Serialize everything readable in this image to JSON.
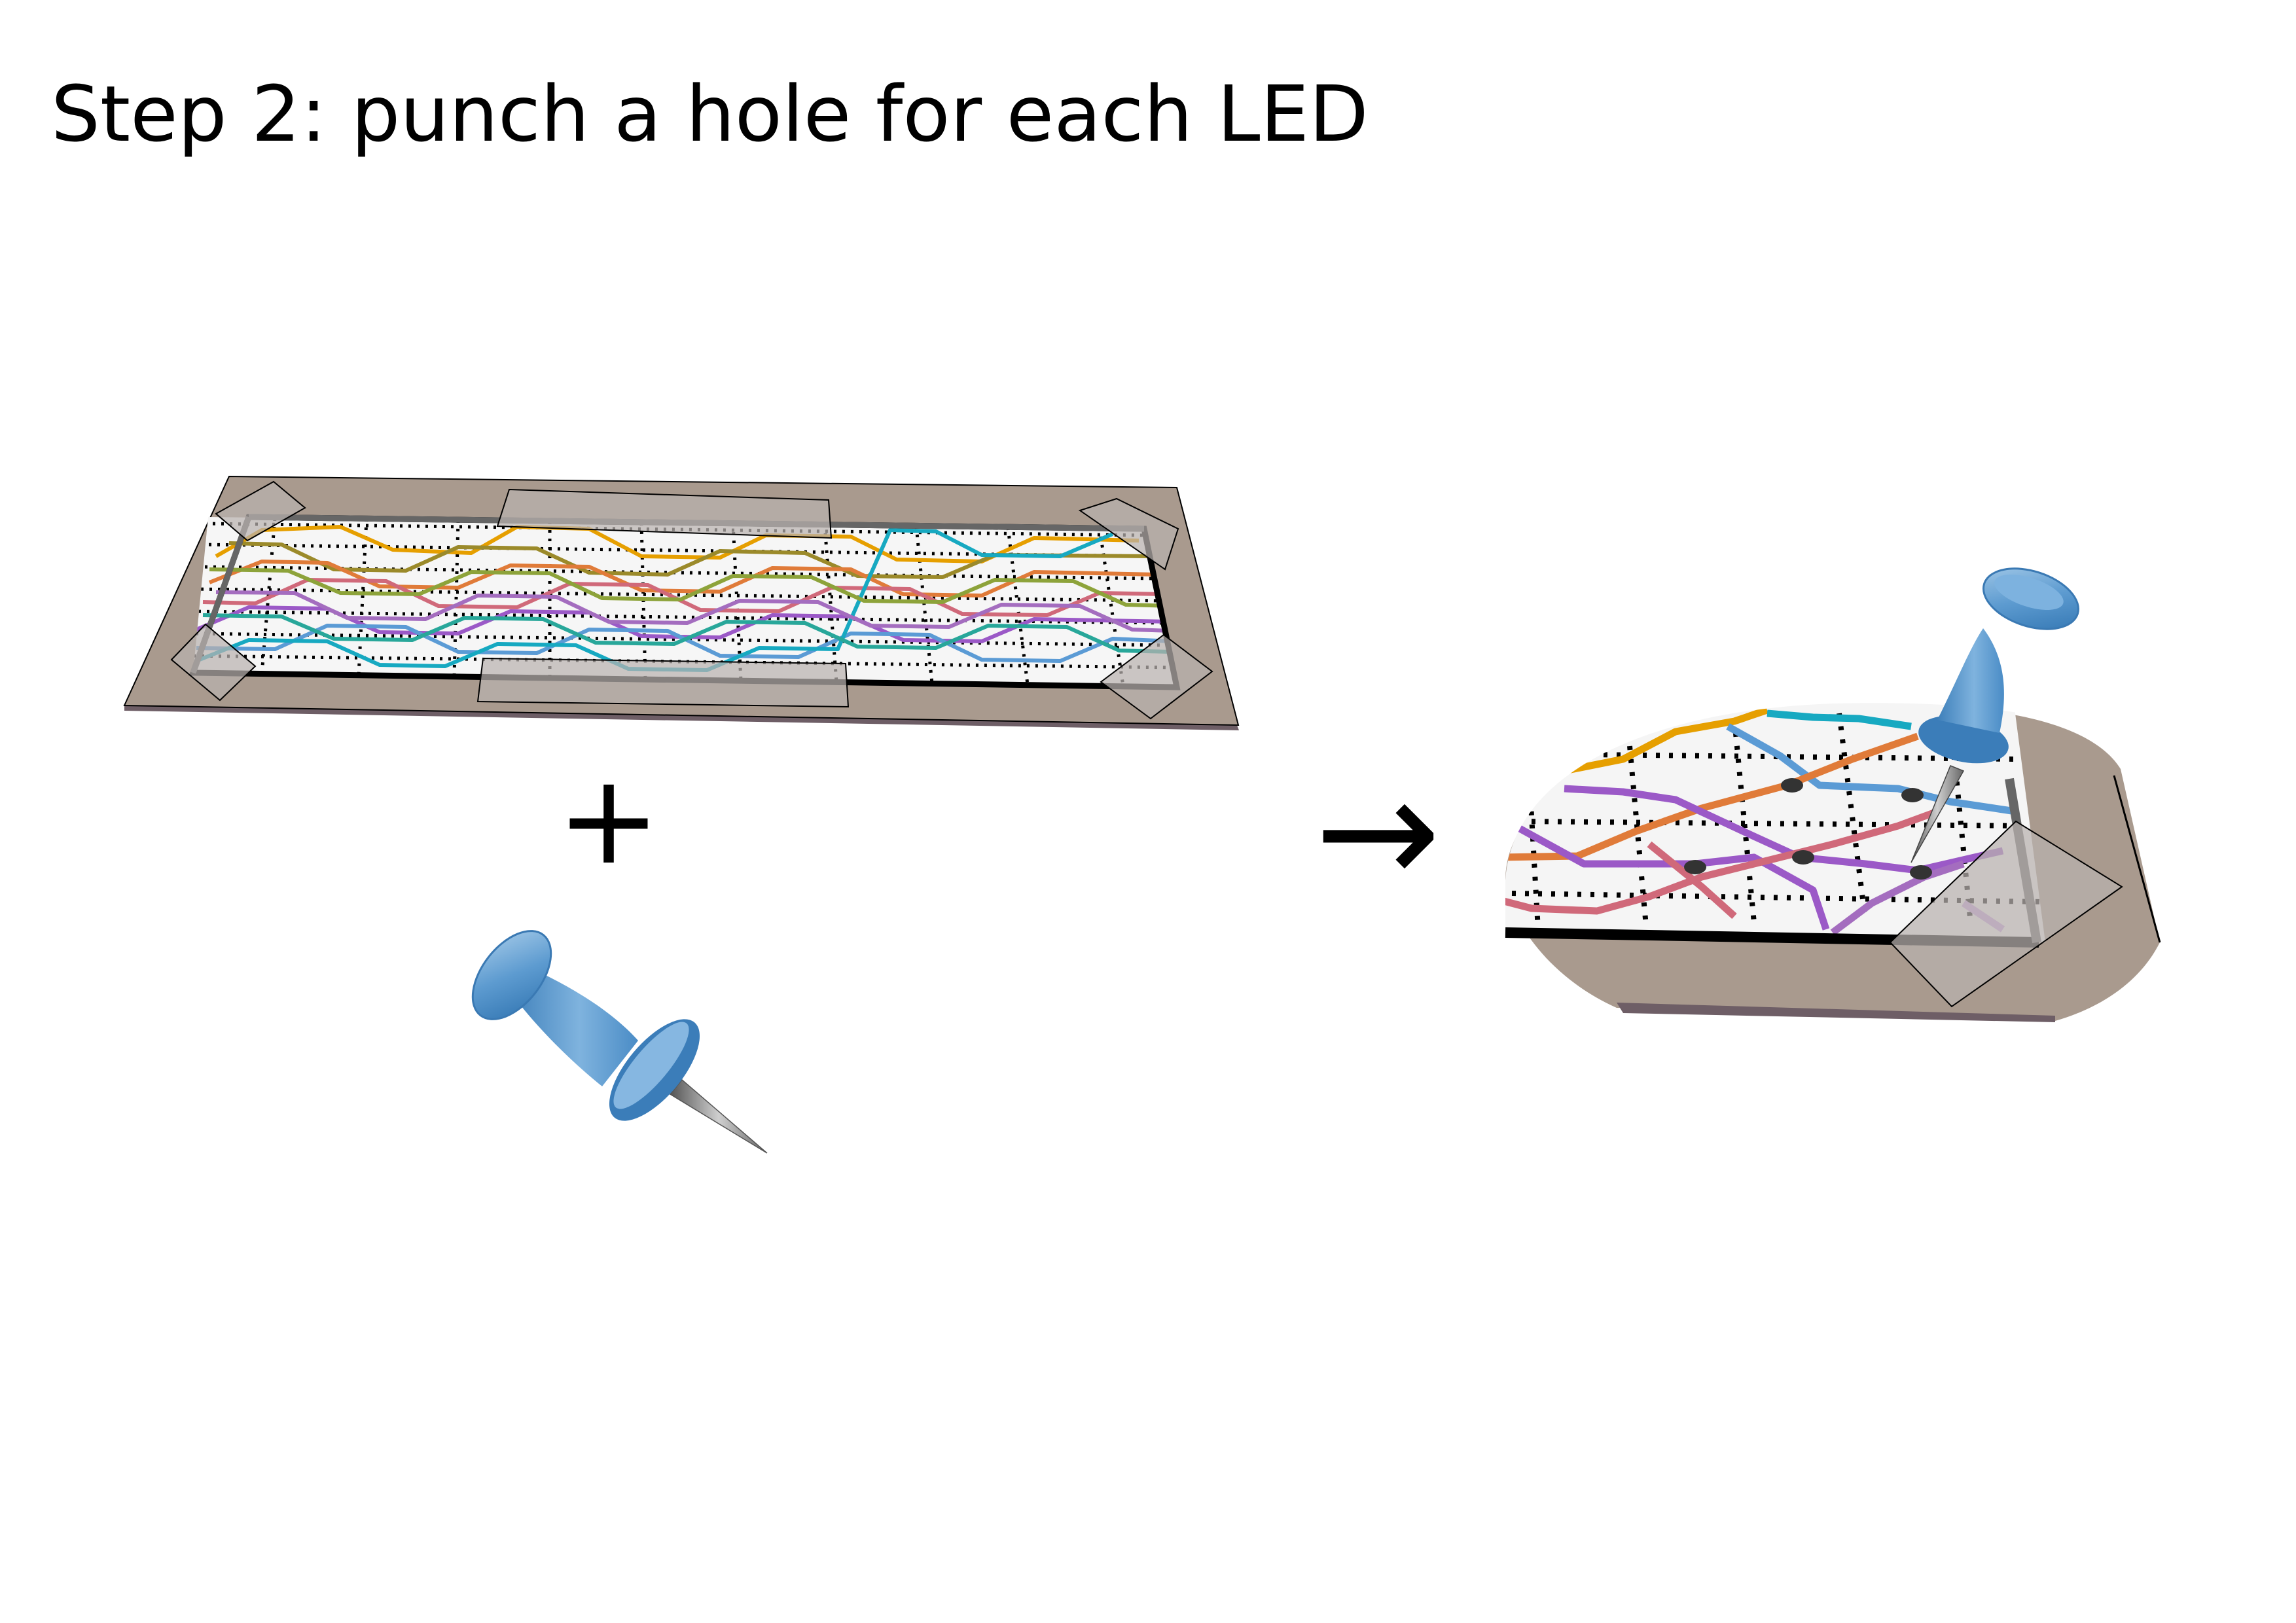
{
  "title": "Step 2: punch a hole for each LED",
  "plus_symbol": "+",
  "arrow_symbol": "→",
  "colors": {
    "board": "#a99a8e",
    "board_edge": "#6e5e66",
    "paper": "#f4f4f4",
    "pushpin": "#4f8fc4",
    "pin_needle": "#888888",
    "led_hole": "#333333",
    "wires": [
      "#e69f00",
      "#e07b39",
      "#d0697a",
      "#9b59c7",
      "#5b9bd5",
      "#17a9c1",
      "#28a79a",
      "#8da33a"
    ]
  },
  "icons": [
    "pushpin-icon",
    "plus-icon",
    "arrow-right-icon"
  ]
}
